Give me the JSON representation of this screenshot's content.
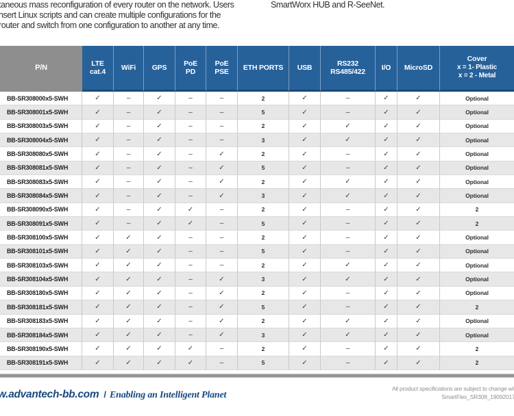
{
  "intro": {
    "left_lines": [
      "taneous mass reconfiguration of every router on the network. Users",
      "nsert Linux scripts and can create multiple configurations for the",
      "router and switch from one configuration to another at any time."
    ],
    "right_line": "SmartWorx HUB and R-SeeNet."
  },
  "table": {
    "columns": [
      {
        "id": "pn",
        "lines": [
          "P/N"
        ]
      },
      {
        "id": "lte",
        "lines": [
          "LTE",
          "cat.4"
        ]
      },
      {
        "id": "wifi",
        "lines": [
          "WiFi"
        ]
      },
      {
        "id": "gps",
        "lines": [
          "GPS"
        ]
      },
      {
        "id": "poe-pd",
        "lines": [
          "PoE",
          "PD"
        ]
      },
      {
        "id": "poe-pse",
        "lines": [
          "PoE",
          "PSE"
        ]
      },
      {
        "id": "eth",
        "lines": [
          "ETH PORTS"
        ]
      },
      {
        "id": "usb",
        "lines": [
          "USB"
        ]
      },
      {
        "id": "rs232",
        "lines": [
          "RS232",
          "RS485/422"
        ]
      },
      {
        "id": "io",
        "lines": [
          "I/O"
        ]
      },
      {
        "id": "microsd",
        "lines": [
          "MicroSD"
        ]
      },
      {
        "id": "cover",
        "lines": [
          "Cover",
          "x = 1- Plastic",
          "x = 2 - Metal"
        ]
      }
    ],
    "rows": [
      [
        "BB-SR308000x5-SWH",
        "✓",
        "–",
        "✓",
        "–",
        "–",
        "2",
        "✓",
        "–",
        "✓",
        "✓",
        "Optional"
      ],
      [
        "BB-SR308001x5-SWH",
        "✓",
        "–",
        "✓",
        "–",
        "–",
        "5",
        "✓",
        "–",
        "✓",
        "✓",
        "Optional"
      ],
      [
        "BB-SR308003x5-SWH",
        "✓",
        "–",
        "✓",
        "–",
        "–",
        "2",
        "✓",
        "✓",
        "✓",
        "✓",
        "Optional"
      ],
      [
        "BB-SR308004x5-SWH",
        "✓",
        "–",
        "✓",
        "–",
        "–",
        "3",
        "✓",
        "✓",
        "✓",
        "✓",
        "Optional"
      ],
      [
        "BB-SR308080x5-SWH",
        "✓",
        "–",
        "✓",
        "–",
        "✓",
        "2",
        "✓",
        "–",
        "✓",
        "✓",
        "Optional"
      ],
      [
        "BB-SR308081x5-SWH",
        "✓",
        "–",
        "✓",
        "–",
        "✓",
        "5",
        "✓",
        "–",
        "✓",
        "✓",
        "Optional"
      ],
      [
        "BB-SR308083x5-SWH",
        "✓",
        "–",
        "✓",
        "–",
        "✓",
        "2",
        "✓",
        "✓",
        "✓",
        "✓",
        "Optional"
      ],
      [
        "BB-SR308084x5-SWH",
        "✓",
        "–",
        "✓",
        "–",
        "✓",
        "3",
        "✓",
        "✓",
        "✓",
        "✓",
        "Optional"
      ],
      [
        "BB-SR308090x5-SWH",
        "✓",
        "–",
        "✓",
        "✓",
        "–",
        "2",
        "✓",
        "–",
        "✓",
        "✓",
        "2"
      ],
      [
        "BB-SR308091x5-SWH",
        "✓",
        "–",
        "✓",
        "✓",
        "–",
        "5",
        "✓",
        "–",
        "✓",
        "✓",
        "2"
      ],
      [
        "BB-SR308100x5-SWH",
        "✓",
        "✓",
        "✓",
        "–",
        "–",
        "2",
        "✓",
        "–",
        "✓",
        "✓",
        "Optional"
      ],
      [
        "BB-SR308101x5-SWH",
        "✓",
        "✓",
        "✓",
        "–",
        "–",
        "5",
        "✓",
        "–",
        "✓",
        "✓",
        "Optional"
      ],
      [
        "BB-SR308103x5-SWH",
        "✓",
        "✓",
        "✓",
        "–",
        "–",
        "2",
        "✓",
        "✓",
        "✓",
        "✓",
        "Optional"
      ],
      [
        "BB-SR308104x5-SWH",
        "✓",
        "✓",
        "✓",
        "–",
        "✓",
        "3",
        "✓",
        "✓",
        "✓",
        "✓",
        "Optional"
      ],
      [
        "BB-SR308180x5-SWH",
        "✓",
        "✓",
        "✓",
        "–",
        "✓",
        "2",
        "✓",
        "–",
        "✓",
        "✓",
        "Optional"
      ],
      [
        "BB-SR308181x5-SWH",
        "✓",
        "✓",
        "✓",
        "–",
        "✓",
        "5",
        "✓",
        "–",
        "✓",
        "✓",
        "2"
      ],
      [
        "BB-SR308183x5-SWH",
        "✓",
        "✓",
        "✓",
        "–",
        "✓",
        "2",
        "✓",
        "✓",
        "✓",
        "✓",
        "Optional"
      ],
      [
        "BB-SR308184x5-SWH",
        "✓",
        "✓",
        "✓",
        "–",
        "✓",
        "3",
        "✓",
        "✓",
        "✓",
        "✓",
        "Optional"
      ],
      [
        "BB-SR308190x5-SWH",
        "✓",
        "✓",
        "✓",
        "✓",
        "–",
        "2",
        "✓",
        "–",
        "✓",
        "✓",
        "2"
      ],
      [
        "BB-SR308191x5-SWH",
        "✓",
        "✓",
        "✓",
        "✓",
        "–",
        "5",
        "✓",
        "–",
        "✓",
        "✓",
        "2"
      ]
    ]
  },
  "footer": {
    "website": "w.advantech-bb.com",
    "separator": "/",
    "tagline": "Enabling an Intelligent Planet",
    "note_line1": "All product specifications are subject to change with",
    "note_line2": "SmartFlex_SR308_19092017d"
  },
  "colors": {
    "header_blue": "#27619a",
    "header_gray": "#8e8e8e",
    "header_underline": "#1b4a77",
    "row_alt_gray": "#e7e7e7",
    "brand_navy": "#17497f"
  }
}
